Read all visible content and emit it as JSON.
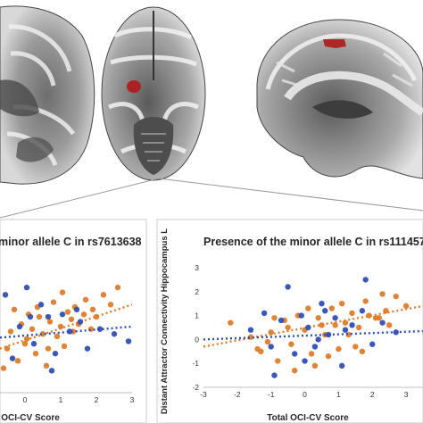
{
  "colors": {
    "allele_absent": "#e07b2a",
    "allele_present": "#2e4fb5",
    "roi_highlight": "#b01818"
  },
  "brain_views": [
    "axial-slice",
    "axial-slice",
    "sagittal-slice"
  ],
  "chart_data": [
    {
      "type": "scatter",
      "title": "minor allele C in rs7613638",
      "xlabel": "OCI-CV Score",
      "ylabel": "",
      "x_ticks": [
        "0",
        "1",
        "2",
        "3"
      ],
      "y_ticks": [],
      "xlim": [
        -0.7,
        3.0
      ],
      "ylim": [
        -2.2,
        3.2
      ],
      "grid": false,
      "series": [
        {
          "values_x": [
            -0.5,
            -0.4,
            -0.3,
            -0.2,
            -0.1,
            0.0,
            0.1,
            0.2,
            0.3,
            0.4,
            0.5,
            0.6,
            0.7,
            0.8,
            0.9,
            1.0,
            1.1,
            1.2,
            1.3,
            1.4,
            1.5,
            1.7,
            1.9,
            2.0,
            2.2,
            2.4,
            2.6,
            -0.6,
            0.05,
            0.35,
            0.65,
            1.05,
            1.35,
            1.65,
            1.85
          ],
          "values_y": [
            -0.4,
            0.3,
            1.2,
            -0.9,
            0.6,
            -0.2,
            1.0,
            0.4,
            -0.6,
            0.9,
            0.2,
            -1.1,
            0.7,
            1.5,
            0.1,
            0.5,
            -0.3,
            1.1,
            0.8,
            1.3,
            0.6,
            1.6,
            1.2,
            0.9,
            1.8,
            1.4,
            2.1,
            -1.2,
            0.0,
            1.3,
            -0.4,
            1.9,
            0.3,
            1.0,
            0.4
          ],
          "trend_x": [
            -0.7,
            3.0
          ],
          "trend_y": [
            -0.4,
            1.4
          ]
        },
        {
          "values_x": [
            -0.55,
            -0.35,
            -0.15,
            0.05,
            0.25,
            0.45,
            0.65,
            0.85,
            1.05,
            1.25,
            1.55,
            1.75,
            2.1,
            2.5,
            2.9,
            0.15,
            0.75,
            1.45
          ],
          "values_y": [
            1.8,
            -0.8,
            0.5,
            2.1,
            -0.2,
            1.4,
            0.9,
            -0.6,
            1.0,
            0.3,
            0.7,
            -0.4,
            0.4,
            0.2,
            -0.1,
            0.9,
            -1.3,
            1.2
          ],
          "trend_x": [
            -0.7,
            3.0
          ],
          "trend_y": [
            0.05,
            0.5
          ]
        }
      ]
    },
    {
      "type": "scatter",
      "title": "Presence of the minor allele C in rs111457",
      "xlabel": "Total OCI-CV Score",
      "ylabel": "Distant Attractor Connectivity Hippocampus L",
      "x_ticks": [
        "-3",
        "-2",
        "-1",
        "0",
        "1",
        "2",
        "3"
      ],
      "y_ticks": [
        "3",
        "2",
        "1",
        "0",
        "-1",
        "-2"
      ],
      "xlim": [
        -3,
        3.5
      ],
      "ylim": [
        -2,
        3
      ],
      "grid": false,
      "series": [
        {
          "values_x": [
            -2.2,
            -1.6,
            -1.3,
            -1.0,
            -0.8,
            -0.6,
            -0.4,
            -0.2,
            0.0,
            0.2,
            0.4,
            0.6,
            0.8,
            1.0,
            1.2,
            1.4,
            1.6,
            1.8,
            2.1,
            2.4,
            2.7,
            3.0,
            -1.1,
            -0.5,
            0.3,
            0.9,
            1.5,
            2.2,
            -0.9,
            0.1,
            0.7,
            1.3,
            1.9,
            2.5,
            -1.4,
            -0.3,
            0.5,
            1.1,
            1.7,
            2.3
          ],
          "values_y": [
            0.7,
            0.1,
            -0.5,
            0.3,
            -0.9,
            0.8,
            -0.2,
            1.0,
            0.4,
            -0.6,
            0.9,
            0.2,
            1.3,
            -0.4,
            0.7,
            1.1,
            0.5,
            1.6,
            0.9,
            1.2,
            1.8,
            1.4,
            -0.1,
            0.5,
            -1.1,
            0.6,
            -0.3,
            0.9,
            0.9,
            1.3,
            -0.7,
            0.2,
            1.0,
            0.6,
            -0.4,
            -1.3,
            0.6,
            1.5,
            -0.5,
            1.9
          ],
          "trend_x": [
            -3,
            3.5
          ],
          "trend_y": [
            -0.3,
            1.4
          ]
        },
        {
          "values_x": [
            -1.6,
            -1.2,
            -0.9,
            -0.7,
            -0.5,
            -0.3,
            -0.1,
            0.1,
            0.3,
            0.5,
            0.7,
            0.9,
            1.1,
            1.4,
            1.7,
            2.0,
            2.3,
            2.7,
            -0.6,
            0.0,
            0.6,
            1.2,
            1.8,
            -1.0,
            0.4
          ],
          "values_y": [
            0.4,
            1.1,
            -1.5,
            0.8,
            2.2,
            -0.6,
            1.0,
            0.5,
            -0.3,
            1.5,
            0.2,
            0.9,
            -1.1,
            0.6,
            1.2,
            -0.2,
            0.7,
            0.3,
            3.2,
            -0.9,
            1.2,
            0.4,
            2.5,
            -0.3,
            0.0
          ],
          "trend_x": [
            -3,
            3.5
          ],
          "trend_y": [
            0.0,
            0.35
          ]
        }
      ]
    }
  ]
}
